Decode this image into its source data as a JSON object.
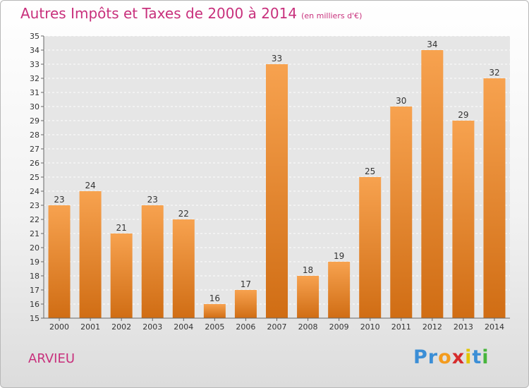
{
  "header": {
    "title": "Autres Impôts et Taxes de 2000 à 2014",
    "unit": "(en milliers d'€)"
  },
  "footer": {
    "commune": "ARVIEU"
  },
  "logo": {
    "letters": [
      {
        "char": "P",
        "color": "#3b8ed6"
      },
      {
        "char": "r",
        "color": "#3b8ed6"
      },
      {
        "char": "o",
        "color": "#f39b1e"
      },
      {
        "char": "x",
        "color": "#d62c2c"
      },
      {
        "char": "i",
        "color": "#e2c500"
      },
      {
        "char": "t",
        "color": "#3b8ed6"
      },
      {
        "char": "i",
        "color": "#47b53c"
      }
    ]
  },
  "chart_data": {
    "type": "bar",
    "title": "Autres Impôts et Taxes de 2000 à 2014",
    "subtitle": "(en milliers d'€)",
    "categories": [
      "2000",
      "2001",
      "2002",
      "2003",
      "2004",
      "2005",
      "2006",
      "2007",
      "2008",
      "2009",
      "2010",
      "2011",
      "2012",
      "2013",
      "2014"
    ],
    "values": [
      23,
      24,
      21,
      23,
      22,
      16,
      17,
      33,
      18,
      19,
      25,
      30,
      34,
      29,
      32
    ],
    "ylim": [
      15,
      35
    ],
    "yticks": [
      15,
      16,
      17,
      18,
      19,
      20,
      21,
      22,
      23,
      24,
      25,
      26,
      27,
      28,
      29,
      30,
      31,
      32,
      33,
      34,
      35
    ],
    "grid": true,
    "bar_color_light": "#f7a24f",
    "bar_color_dark": "#d06d14"
  }
}
